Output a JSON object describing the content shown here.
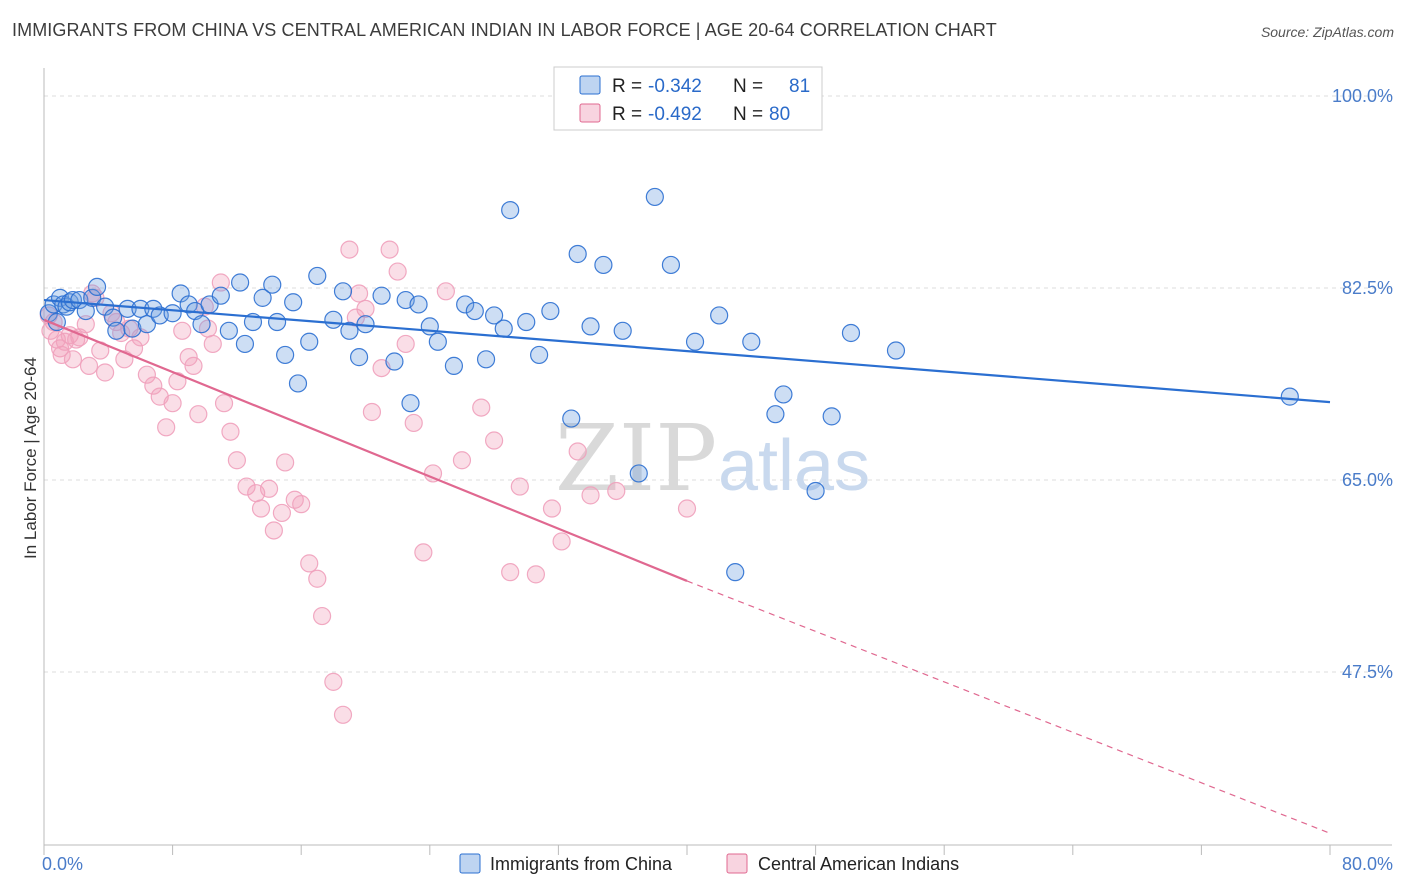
{
  "title": "IMMIGRANTS FROM CHINA VS CENTRAL AMERICAN INDIAN IN LABOR FORCE | AGE 20-64 CORRELATION CHART",
  "source": "Source: ZipAtlas.com",
  "watermark": {
    "zip": "ZIP",
    "atlas": "atlas"
  },
  "legend": {
    "r_label": "R =",
    "n_label": "N =",
    "china": {
      "r": "-0.342",
      "n": "81"
    },
    "cai": {
      "r": "-0.492",
      "n": "80"
    }
  },
  "colors": {
    "china": "#6fa0e0",
    "china_line": "#2b6fd1",
    "cai": "#f0a0bb",
    "cai_line": "#e06890",
    "axis_text": "#4a7cc9"
  },
  "chart_data": {
    "type": "scatter",
    "xlabel": "",
    "ylabel": "In Labor Force | Age 20-64",
    "xlim": [
      0,
      80
    ],
    "ylim": [
      32.5,
      102
    ],
    "x_tick_labels": [
      "0.0%",
      "80.0%"
    ],
    "y_ticks": [
      47.5,
      65.0,
      82.5,
      100.0
    ],
    "y_tick_labels": [
      "47.5%",
      "65.0%",
      "82.5%",
      "100.0%"
    ],
    "grid": true,
    "legend_position": "top-center",
    "series": [
      {
        "name": "Immigrants from China",
        "trend": {
          "x0": 0,
          "y0": 81.4,
          "x1": 80,
          "y1": 72.1
        },
        "points": [
          [
            0.3,
            80.2
          ],
          [
            0.6,
            81.0
          ],
          [
            0.8,
            79.4
          ],
          [
            1.0,
            81.6
          ],
          [
            1.2,
            81.0
          ],
          [
            1.4,
            80.8
          ],
          [
            1.6,
            81.2
          ],
          [
            1.8,
            81.4
          ],
          [
            2.2,
            81.4
          ],
          [
            2.6,
            80.4
          ],
          [
            3.0,
            81.6
          ],
          [
            3.3,
            82.6
          ],
          [
            3.8,
            80.8
          ],
          [
            4.3,
            79.8
          ],
          [
            4.5,
            78.6
          ],
          [
            5.2,
            80.6
          ],
          [
            5.5,
            78.8
          ],
          [
            6.0,
            80.6
          ],
          [
            6.4,
            79.2
          ],
          [
            6.8,
            80.6
          ],
          [
            7.2,
            80.0
          ],
          [
            8.0,
            80.2
          ],
          [
            8.5,
            82.0
          ],
          [
            9.0,
            81.0
          ],
          [
            9.4,
            80.4
          ],
          [
            9.8,
            79.2
          ],
          [
            10.3,
            81.0
          ],
          [
            11.0,
            81.8
          ],
          [
            11.5,
            78.6
          ],
          [
            12.2,
            83.0
          ],
          [
            12.5,
            77.4
          ],
          [
            13.0,
            79.4
          ],
          [
            13.6,
            81.6
          ],
          [
            14.2,
            82.8
          ],
          [
            14.5,
            79.4
          ],
          [
            15.0,
            76.4
          ],
          [
            15.5,
            81.2
          ],
          [
            15.8,
            73.8
          ],
          [
            16.5,
            77.6
          ],
          [
            17.0,
            83.6
          ],
          [
            18.0,
            79.6
          ],
          [
            18.6,
            82.2
          ],
          [
            19.0,
            78.6
          ],
          [
            19.6,
            76.2
          ],
          [
            20.0,
            79.2
          ],
          [
            21.0,
            81.8
          ],
          [
            21.8,
            75.8
          ],
          [
            22.5,
            81.4
          ],
          [
            22.8,
            72.0
          ],
          [
            23.3,
            81.0
          ],
          [
            24.0,
            79.0
          ],
          [
            24.5,
            77.6
          ],
          [
            25.5,
            75.4
          ],
          [
            26.2,
            81.0
          ],
          [
            26.8,
            80.4
          ],
          [
            27.5,
            76.0
          ],
          [
            28.0,
            80.0
          ],
          [
            28.6,
            78.8
          ],
          [
            29.0,
            89.6
          ],
          [
            30.0,
            79.4
          ],
          [
            30.8,
            76.4
          ],
          [
            31.5,
            80.4
          ],
          [
            32.8,
            70.6
          ],
          [
            33.2,
            85.6
          ],
          [
            34.0,
            79.0
          ],
          [
            34.8,
            84.6
          ],
          [
            36.0,
            78.6
          ],
          [
            37.0,
            65.6
          ],
          [
            38.0,
            90.8
          ],
          [
            39.0,
            84.6
          ],
          [
            40.5,
            77.6
          ],
          [
            42.0,
            80.0
          ],
          [
            43.0,
            56.6
          ],
          [
            44.0,
            77.6
          ],
          [
            45.5,
            71.0
          ],
          [
            46.0,
            72.8
          ],
          [
            48.0,
            64.0
          ],
          [
            49.0,
            70.8
          ],
          [
            50.2,
            78.4
          ],
          [
            53.0,
            76.8
          ],
          [
            77.5,
            72.6
          ]
        ]
      },
      {
        "name": "Central American Indians",
        "trend": {
          "x0": 0,
          "y0": 79.6,
          "x1": 40,
          "y1": 55.8
        },
        "trend_dashed": {
          "x0": 40,
          "y0": 55.8,
          "x1": 80,
          "y1": 32.8
        },
        "points": [
          [
            0.3,
            80.0
          ],
          [
            0.4,
            78.6
          ],
          [
            0.6,
            79.4
          ],
          [
            0.8,
            77.8
          ],
          [
            1.0,
            77.0
          ],
          [
            1.1,
            76.4
          ],
          [
            1.3,
            77.6
          ],
          [
            1.6,
            78.2
          ],
          [
            1.8,
            76.0
          ],
          [
            2.0,
            77.8
          ],
          [
            2.2,
            78.0
          ],
          [
            2.6,
            79.2
          ],
          [
            2.8,
            75.4
          ],
          [
            3.0,
            82.0
          ],
          [
            3.2,
            81.6
          ],
          [
            3.5,
            76.8
          ],
          [
            3.8,
            74.8
          ],
          [
            4.2,
            80.2
          ],
          [
            4.5,
            79.4
          ],
          [
            4.8,
            78.4
          ],
          [
            5.0,
            76.0
          ],
          [
            5.3,
            78.8
          ],
          [
            5.6,
            77.0
          ],
          [
            6.0,
            78.0
          ],
          [
            6.4,
            74.6
          ],
          [
            6.8,
            73.6
          ],
          [
            7.2,
            72.6
          ],
          [
            7.6,
            69.8
          ],
          [
            8.0,
            72.0
          ],
          [
            8.3,
            74.0
          ],
          [
            8.6,
            78.6
          ],
          [
            9.0,
            76.2
          ],
          [
            9.3,
            75.4
          ],
          [
            9.6,
            71.0
          ],
          [
            10.0,
            80.8
          ],
          [
            10.2,
            78.8
          ],
          [
            10.5,
            77.4
          ],
          [
            11.0,
            83.0
          ],
          [
            11.2,
            72.0
          ],
          [
            11.6,
            69.4
          ],
          [
            12.0,
            66.8
          ],
          [
            12.6,
            64.4
          ],
          [
            13.2,
            63.8
          ],
          [
            13.5,
            62.4
          ],
          [
            14.0,
            64.2
          ],
          [
            14.3,
            60.4
          ],
          [
            14.8,
            62.0
          ],
          [
            15.0,
            66.6
          ],
          [
            15.6,
            63.2
          ],
          [
            16.0,
            62.8
          ],
          [
            16.5,
            57.4
          ],
          [
            17.0,
            56.0
          ],
          [
            17.3,
            52.6
          ],
          [
            18.0,
            46.6
          ],
          [
            18.6,
            43.6
          ],
          [
            19.0,
            86.0
          ],
          [
            19.4,
            79.8
          ],
          [
            19.6,
            82.0
          ],
          [
            20.0,
            80.6
          ],
          [
            20.4,
            71.2
          ],
          [
            21.0,
            75.2
          ],
          [
            21.5,
            86.0
          ],
          [
            22.0,
            84.0
          ],
          [
            22.5,
            77.4
          ],
          [
            23.0,
            70.2
          ],
          [
            23.6,
            58.4
          ],
          [
            24.2,
            65.6
          ],
          [
            25.0,
            82.2
          ],
          [
            26.0,
            66.8
          ],
          [
            27.2,
            71.6
          ],
          [
            28.0,
            68.6
          ],
          [
            29.0,
            56.6
          ],
          [
            29.6,
            64.4
          ],
          [
            30.6,
            56.4
          ],
          [
            31.6,
            62.4
          ],
          [
            32.2,
            59.4
          ],
          [
            33.2,
            67.6
          ],
          [
            34.0,
            63.6
          ],
          [
            35.6,
            64.0
          ],
          [
            40.0,
            62.4
          ]
        ]
      }
    ]
  }
}
